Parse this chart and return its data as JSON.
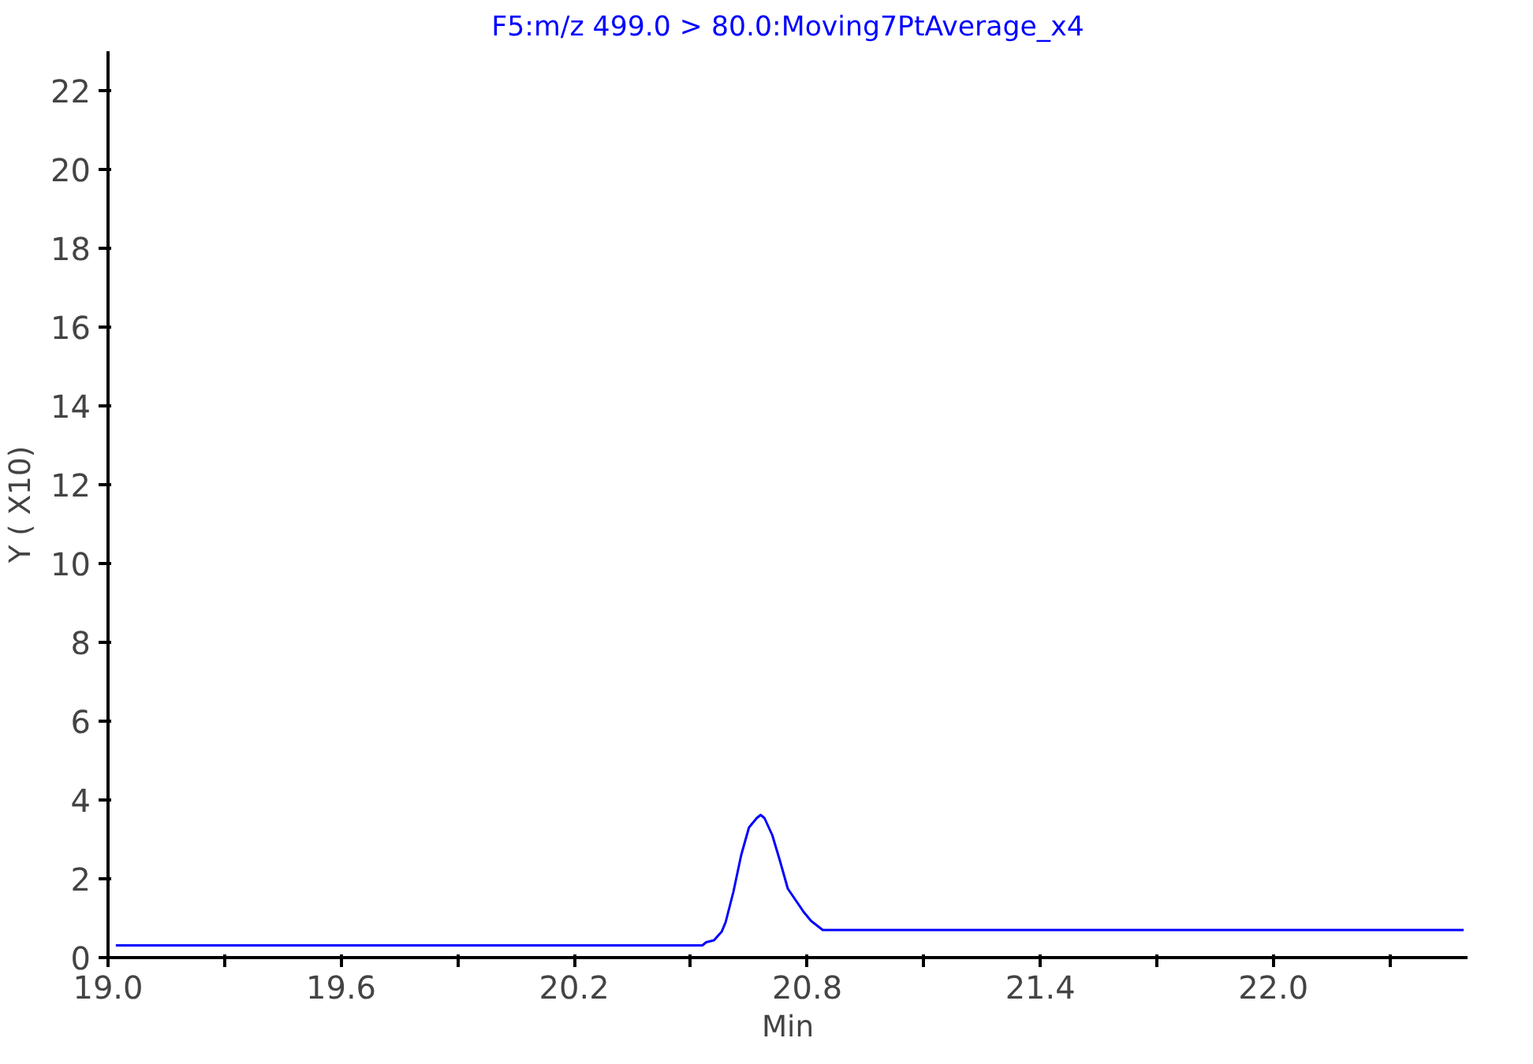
{
  "chart_data": {
    "type": "line",
    "title": "F5:m/z 499.0 > 80.0:Moving7PtAverage_x4",
    "xlabel": "Min",
    "ylabel": "Y ( X10)",
    "x": [
      19.02,
      20.53,
      20.54,
      20.56,
      20.58,
      20.59,
      20.61,
      20.63,
      20.65,
      20.67,
      20.68,
      20.69,
      20.71,
      20.73,
      20.75,
      20.79,
      20.81,
      20.84,
      22.49
    ],
    "series": [
      {
        "color": "#0000ff",
        "values": [
          0.31,
          0.31,
          0.39,
          0.44,
          0.66,
          0.9,
          1.67,
          2.6,
          3.3,
          3.54,
          3.62,
          3.54,
          3.11,
          2.45,
          1.75,
          1.17,
          0.93,
          0.7,
          0.7
        ]
      }
    ],
    "xlim": [
      19.0,
      22.5
    ],
    "ylim": [
      0,
      23
    ],
    "xticks": [
      {
        "value": 19.0,
        "label": "19.0"
      },
      {
        "value": 19.3,
        "label": null
      },
      {
        "value": 19.6,
        "label": "19.6"
      },
      {
        "value": 19.9,
        "label": null
      },
      {
        "value": 20.2,
        "label": "20.2"
      },
      {
        "value": 20.5,
        "label": null
      },
      {
        "value": 20.8,
        "label": "20.8"
      },
      {
        "value": 21.1,
        "label": null
      },
      {
        "value": 21.4,
        "label": "21.4"
      },
      {
        "value": 21.7,
        "label": null
      },
      {
        "value": 22.0,
        "label": "22.0"
      },
      {
        "value": 22.3,
        "label": null
      }
    ],
    "yticks": [
      0,
      2,
      4,
      6,
      8,
      10,
      12,
      14,
      16,
      18,
      20,
      22
    ],
    "grid": false,
    "marker": "none",
    "line_style": "solid"
  }
}
